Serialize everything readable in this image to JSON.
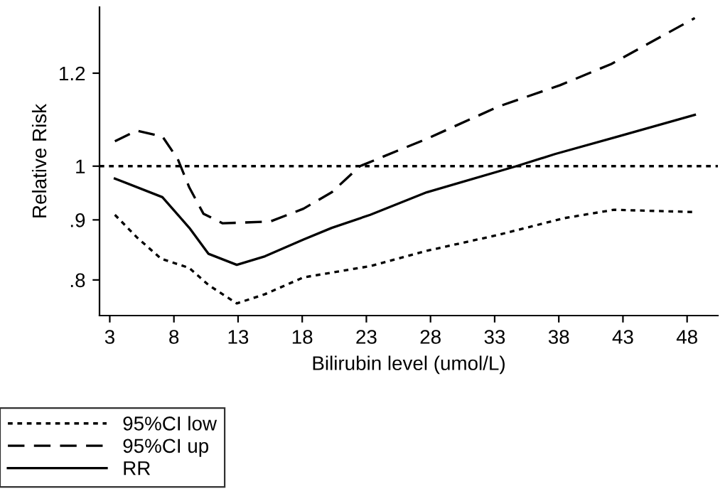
{
  "chart_data": {
    "type": "line",
    "xlabel": "Bilirubin level (umol/L)",
    "ylabel": "Relative Risk",
    "log": "y",
    "xlim": [
      2.2,
      50.4
    ],
    "xticks": [
      3,
      8,
      13,
      18,
      23,
      28,
      33,
      38,
      43,
      48
    ],
    "ylim": [
      0.746,
      1.366
    ],
    "yticks": [
      {
        "value": 0.8,
        "label": ".8"
      },
      {
        "value": 0.9,
        "label": ".9"
      },
      1,
      1.2
    ],
    "grid": false,
    "legend": "bottom left",
    "marker": "none",
    "ref_lines": [
      {
        "axis": "y",
        "value": 1,
        "line_style": "dotted",
        "color": "#000000"
      }
    ],
    "series": [
      {
        "name": "95%CI low",
        "color": "#000000",
        "line_style": "dotted",
        "x": [
          3.4,
          5.1,
          7.0,
          9.2,
          10.7,
          12.9,
          15.1,
          18.1,
          23.3,
          27.7,
          33.3,
          38.4,
          42.3,
          48.4
        ],
        "values": [
          0.909,
          0.87,
          0.834,
          0.819,
          0.792,
          0.764,
          0.778,
          0.804,
          0.822,
          0.847,
          0.874,
          0.903,
          0.918,
          0.914
        ]
      },
      {
        "name": "95%CI up",
        "color": "#000000",
        "line_style": "dashed",
        "x": [
          3.4,
          5.1,
          7.1,
          8.3,
          9.2,
          10.3,
          11.8,
          15.5,
          18.1,
          20.3,
          22.5,
          27.7,
          33.3,
          38.1,
          42.1,
          48.6
        ],
        "values": [
          1.05,
          1.072,
          1.06,
          1.014,
          0.959,
          0.911,
          0.894,
          0.897,
          0.92,
          0.95,
          1.0,
          1.055,
          1.124,
          1.172,
          1.222,
          1.337
        ]
      },
      {
        "name": "RR",
        "color": "#000000",
        "line_style": "solid",
        "x": [
          3.4,
          7.1,
          9.2,
          10.7,
          12.9,
          15.1,
          18.1,
          20.3,
          23.3,
          27.7,
          34.7,
          37.7,
          42.5,
          48.6
        ],
        "values": [
          0.976,
          0.941,
          0.886,
          0.842,
          0.824,
          0.838,
          0.866,
          0.886,
          0.909,
          0.95,
          1.0,
          1.024,
          1.059,
          1.106
        ]
      }
    ]
  }
}
